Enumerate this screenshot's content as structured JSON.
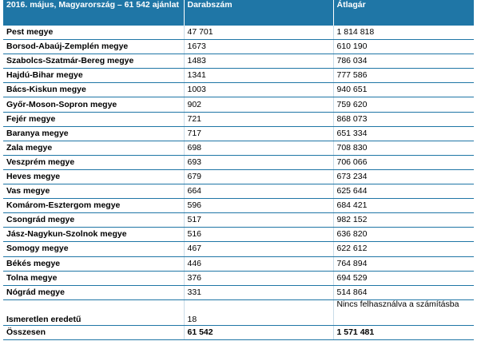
{
  "header": {
    "col1": "2016. május, Magyarország – 61 542 ajánlat",
    "col2": "Darabszám",
    "col3": "Átlagár"
  },
  "rows": [
    {
      "name": "Pest megye",
      "count": "47 701",
      "price": "1 814 818"
    },
    {
      "name": "Borsod-Abaúj-Zemplén megye",
      "count": "1673",
      "price": "610 190"
    },
    {
      "name": "Szabolcs-Szatmár-Bereg megye",
      "count": "1483",
      "price": "786 034"
    },
    {
      "name": "Hajdú-Bihar megye",
      "count": "1341",
      "price": "777 586"
    },
    {
      "name": "Bács-Kiskun megye",
      "count": "1003",
      "price": "940 651"
    },
    {
      "name": "Győr-Moson-Sopron megye",
      "count": "902",
      "price": "759 620"
    },
    {
      "name": "Fejér megye",
      "count": "721",
      "price": "868 073"
    },
    {
      "name": "Baranya megye",
      "count": "717",
      "price": "651 334"
    },
    {
      "name": "Zala megye",
      "count": "698",
      "price": "708 830"
    },
    {
      "name": "Veszprém megye",
      "count": "693",
      "price": "706 066"
    },
    {
      "name": "Heves megye",
      "count": "679",
      "price": "673 234"
    },
    {
      "name": "Vas megye",
      "count": "664",
      "price": "625 644"
    },
    {
      "name": "Komárom-Esztergom megye",
      "count": "596",
      "price": "684 421"
    },
    {
      "name": "Csongrád megye",
      "count": "517",
      "price": "982 152"
    },
    {
      "name": "Jász-Nagykun-Szolnok megye",
      "count": "516",
      "price": "636 820"
    },
    {
      "name": "Somogy megye",
      "count": "467",
      "price": "622 612"
    },
    {
      "name": "Békés megye",
      "count": "446",
      "price": "764 894"
    },
    {
      "name": "Tolna megye",
      "count": "376",
      "price": "694 529"
    },
    {
      "name": "Nógrád megye",
      "count": "331",
      "price": "514 864"
    }
  ],
  "unknown": {
    "name": "Ismeretlen eredetű",
    "count": "18",
    "price": "Nincs felhasználva a számításba"
  },
  "total": {
    "name": "Összesen",
    "count": "61 542",
    "price": "1 571 481"
  }
}
